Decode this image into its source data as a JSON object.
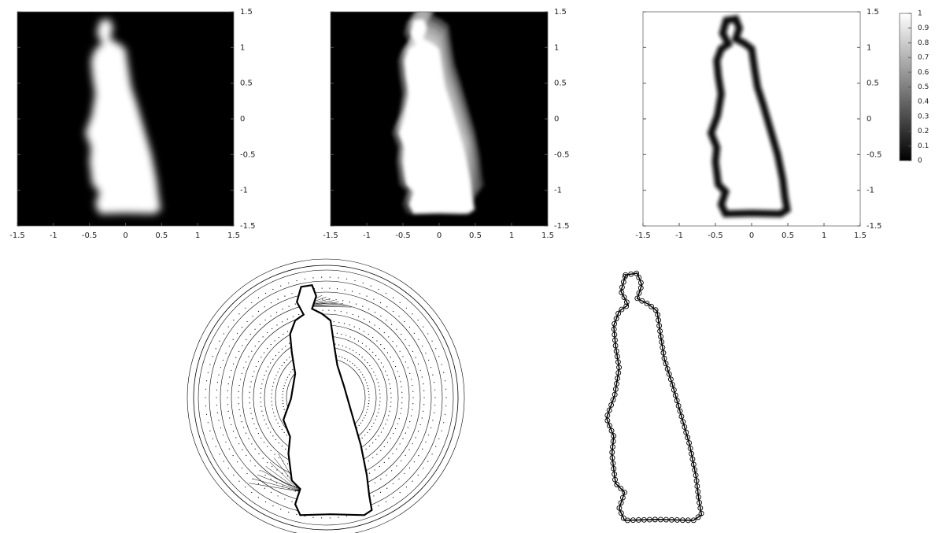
{
  "chart_data": [
    {
      "type": "heatmap",
      "colormap": "gray",
      "xlim": [
        -1.5,
        1.5
      ],
      "ylim": [
        -1.5,
        1.5
      ],
      "xticks": [
        -1.5,
        -1,
        -0.5,
        0,
        0.5,
        1,
        1.5
      ],
      "yticks": [
        -1.5,
        -1,
        -0.5,
        0,
        0.5,
        1,
        1.5
      ]
    },
    {
      "type": "heatmap",
      "colormap": "gray",
      "xlim": [
        -1.5,
        1.5
      ],
      "ylim": [
        -1.5,
        1.5
      ],
      "xticks": [
        -1.5,
        -1,
        -0.5,
        0,
        0.5,
        1,
        1.5
      ],
      "yticks": [
        -1.5,
        -1,
        -0.5,
        0,
        0.5,
        1,
        1.5
      ]
    },
    {
      "type": "heatmap",
      "colormap": "gray",
      "xlim": [
        -1.5,
        1.5
      ],
      "ylim": [
        -1.5,
        1.5
      ],
      "xticks": [
        -1.5,
        -1,
        -0.5,
        0,
        0.5,
        1,
        1.5
      ],
      "yticks": [
        -1.5,
        -1,
        -0.5,
        0,
        0.5,
        1,
        1.5
      ],
      "colorbar": {
        "lim": [
          0,
          1
        ],
        "ticks": [
          0,
          0.1,
          0.2,
          0.3,
          0.4,
          0.5,
          0.6,
          0.7,
          0.8,
          0.9,
          1
        ]
      }
    }
  ]
}
